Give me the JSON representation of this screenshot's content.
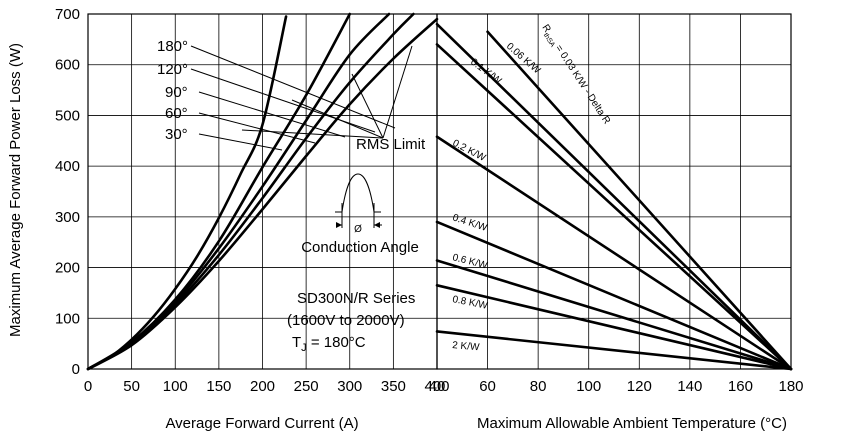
{
  "chart_data": [
    {
      "type": "line",
      "panel": "left",
      "xlabel": "Average Forward Current (A)",
      "ylabel": "Maximum Average Forward Power Loss (W)",
      "xlim": [
        0,
        400
      ],
      "ylim": [
        0,
        700
      ],
      "xticks": [
        "0",
        "50",
        "100",
        "150",
        "200",
        "250",
        "300",
        "350",
        "400"
      ],
      "yticks": [
        "0",
        "100",
        "200",
        "300",
        "400",
        "500",
        "600",
        "700"
      ],
      "grid": true,
      "series": [
        {
          "name": "180°",
          "x": [
            0,
            25,
            50,
            75,
            100,
            125,
            150,
            175,
            200,
            227
          ],
          "y": [
            0,
            23,
            58,
            103,
            158,
            222,
            298,
            385,
            482,
            695
          ]
        },
        {
          "name": "120°",
          "x": [
            0,
            50,
            100,
            150,
            200,
            250,
            300
          ],
          "y": [
            0,
            53,
            137,
            252,
            398,
            540,
            700
          ]
        },
        {
          "name": "90°",
          "x": [
            0,
            50,
            100,
            150,
            200,
            250,
            300,
            345
          ],
          "y": [
            0,
            51,
            132,
            238,
            360,
            490,
            620,
            700
          ]
        },
        {
          "name": "60°",
          "x": [
            0,
            50,
            100,
            150,
            200,
            250,
            300,
            350,
            373
          ],
          "y": [
            0,
            49,
            127,
            225,
            337,
            455,
            565,
            660,
            700
          ]
        },
        {
          "name": "30°",
          "x": [
            0,
            50,
            100,
            150,
            200,
            250,
            300,
            350,
            400
          ],
          "y": [
            0,
            47,
            122,
            213,
            315,
            420,
            522,
            612,
            690
          ]
        }
      ],
      "annotations": {
        "rms_limit": "RMS Limit",
        "conduction_angle": "Conduction Angle",
        "phi": "Ø",
        "series_name": "SD300N/R Series",
        "voltage_range": "(1600V to 2000V)",
        "tj_prefix": "T",
        "tj_sub": "J",
        "tj_suffix": " = 180°C"
      }
    },
    {
      "type": "line",
      "panel": "right",
      "xlabel": "Maximum Allowable Ambient Temperature (°C)",
      "xlim": [
        40,
        180
      ],
      "ylim": [
        0,
        700
      ],
      "xticks": [
        "40",
        "60",
        "80",
        "100",
        "120",
        "140",
        "160",
        "180"
      ],
      "grid": true,
      "rth_prefix": "R",
      "rth_sub": "thSA",
      "series": [
        {
          "name": "= 0.03 K/W - Delta R",
          "x": [
            60,
            180
          ],
          "y": [
            665,
            0
          ]
        },
        {
          "name": "0.06 K/W",
          "x": [
            40,
            180
          ],
          "y": [
            680,
            0
          ]
        },
        {
          "name": "0.1 K/W",
          "x": [
            40,
            180
          ],
          "y": [
            640,
            0
          ]
        },
        {
          "name": "0.2 K/W",
          "x": [
            40,
            180
          ],
          "y": [
            458,
            0
          ]
        },
        {
          "name": "0.4 K/W",
          "x": [
            40,
            180
          ],
          "y": [
            290,
            0
          ]
        },
        {
          "name": "0.6 K/W",
          "x": [
            40,
            180
          ],
          "y": [
            214,
            0
          ]
        },
        {
          "name": "0.8 K/W",
          "x": [
            40,
            180
          ],
          "y": [
            165,
            0
          ]
        },
        {
          "name": "2 K/W",
          "x": [
            40,
            180
          ],
          "y": [
            74,
            0
          ]
        }
      ]
    }
  ]
}
